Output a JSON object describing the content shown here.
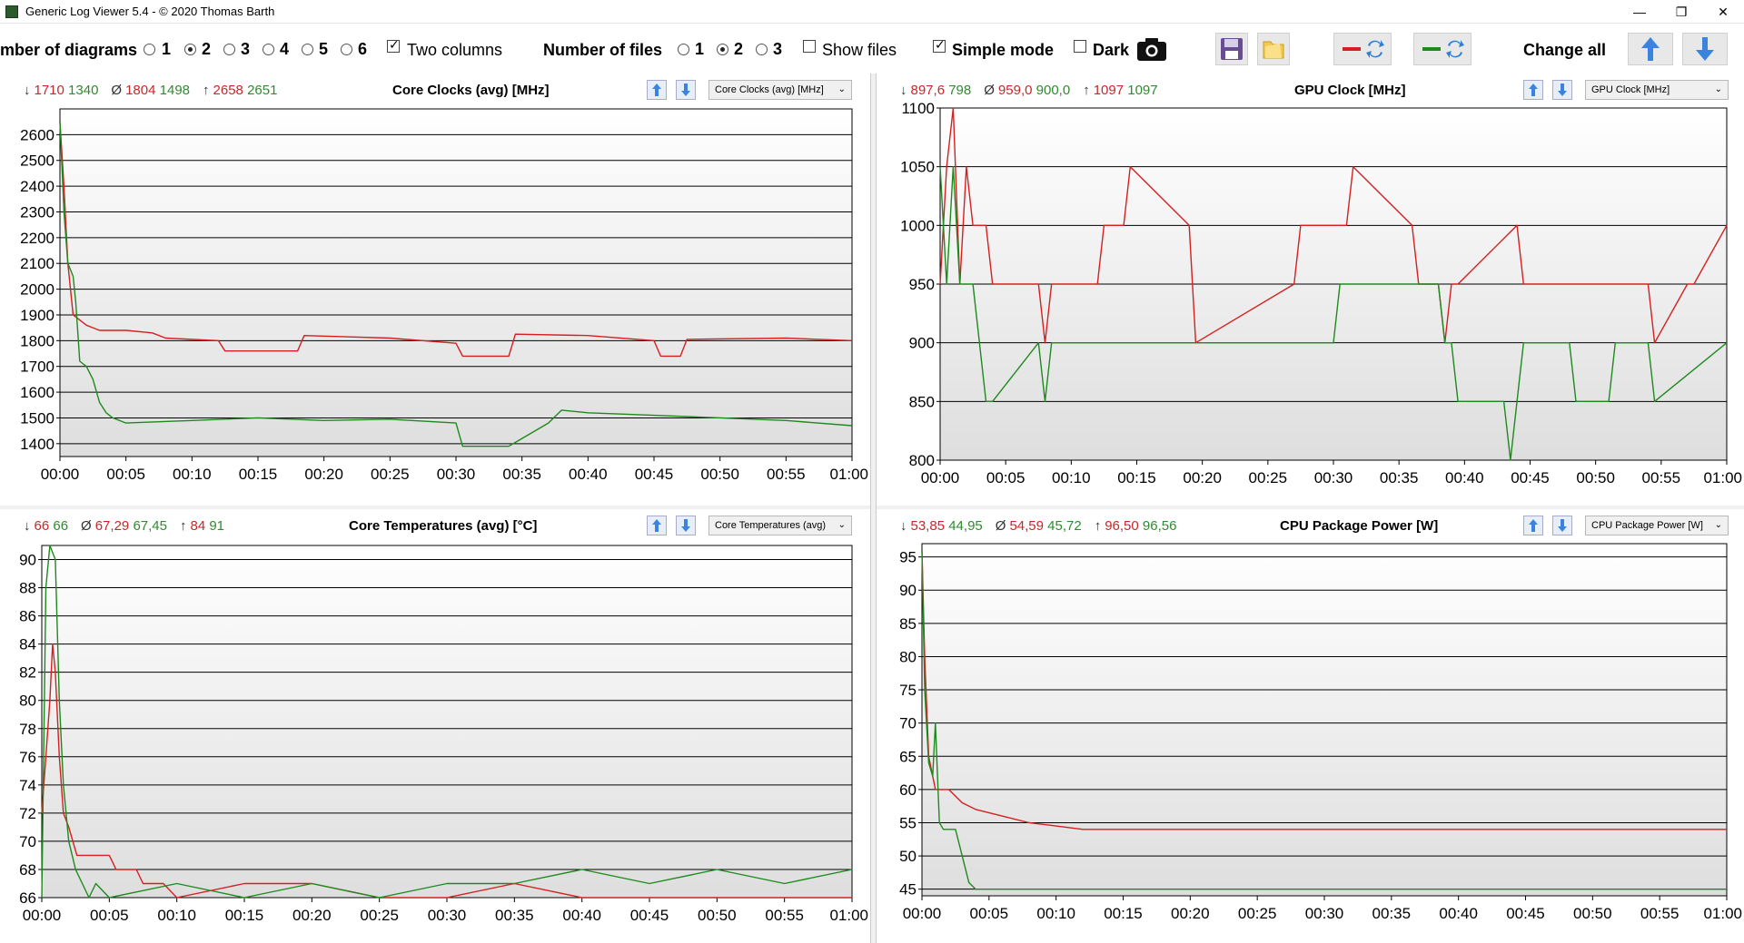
{
  "window": {
    "title": "Generic Log Viewer 5.4 - © 2020 Thomas Barth",
    "buttons": [
      "—",
      "❐",
      "✕"
    ]
  },
  "toolbar": {
    "num_diagrams_label": "mber of diagrams",
    "diagram_options": [
      "1",
      "2",
      "3",
      "4",
      "5",
      "6"
    ],
    "diagram_selected": "2",
    "two_columns_label": "Two columns",
    "two_columns_checked": true,
    "num_files_label": "Number of files",
    "file_options": [
      "1",
      "2",
      "3"
    ],
    "file_selected": "2",
    "show_files_label": "Show files",
    "show_files_checked": false,
    "simple_mode_label": "Simple mode",
    "simple_mode_checked": true,
    "dark_label": "Dark",
    "dark_checked": false,
    "change_all_label": "Change all"
  },
  "colors": {
    "red": "#d42020",
    "green": "#1e8a1e",
    "grid": "#000000"
  },
  "panels": [
    {
      "id": "core-clocks",
      "title": "Core Clocks (avg) [MHz]",
      "combo": "Core Clocks (avg) [MHz]",
      "stats": {
        "min": [
          "1710",
          "1340"
        ],
        "avg": [
          "1804",
          "1498"
        ],
        "max": [
          "2658",
          "2651"
        ]
      },
      "chart_data": {
        "type": "line",
        "ylim": [
          1350,
          2700
        ],
        "yticks": [
          1400,
          1500,
          1600,
          1700,
          1800,
          1900,
          2000,
          2100,
          2200,
          2300,
          2400,
          2500,
          2600
        ],
        "xticks": [
          "00:00",
          "00:05",
          "00:10",
          "00:15",
          "00:20",
          "00:25",
          "00:30",
          "00:35",
          "00:40",
          "00:45",
          "00:50",
          "00:55",
          "01:00"
        ],
        "series": [
          {
            "color": "red",
            "x": [
              0,
              0.3,
              0.6,
              1,
              1.5,
              2,
              2.5,
              3,
              5,
              7,
              8,
              12,
              12.5,
              18,
              18.5,
              25,
              30,
              30.5,
              34,
              34.5,
              40,
              45,
              45.5,
              47,
              47.5,
              55,
              60
            ],
            "y": [
              2650,
              2400,
              2100,
              1900,
              1880,
              1860,
              1850,
              1840,
              1840,
              1830,
              1810,
              1800,
              1760,
              1760,
              1820,
              1810,
              1790,
              1740,
              1740,
              1825,
              1820,
              1800,
              1740,
              1740,
              1805,
              1810,
              1800
            ]
          },
          {
            "color": "green",
            "x": [
              0,
              0.3,
              0.6,
              1,
              1.2,
              1.5,
              2,
              2.5,
              3,
              3.5,
              4,
              5,
              10,
              15,
              20,
              25,
              30,
              30.5,
              34,
              35,
              37,
              38,
              40,
              45,
              50,
              55,
              60
            ],
            "y": [
              2650,
              2300,
              2100,
              2050,
              1950,
              1720,
              1700,
              1650,
              1560,
              1520,
              1500,
              1480,
              1490,
              1500,
              1490,
              1495,
              1480,
              1390,
              1390,
              1420,
              1480,
              1530,
              1520,
              1510,
              1500,
              1490,
              1470
            ]
          }
        ]
      }
    },
    {
      "id": "gpu-clock",
      "title": "GPU Clock [MHz]",
      "combo": "GPU Clock [MHz]",
      "stats": {
        "min": [
          "897,6",
          "798"
        ],
        "avg": [
          "959,0",
          "900,0"
        ],
        "max": [
          "1097",
          "1097"
        ]
      },
      "chart_data": {
        "type": "line",
        "ylim": [
          800,
          1100
        ],
        "yticks": [
          800,
          850,
          900,
          950,
          1000,
          1050,
          1100
        ],
        "xticks": [
          "00:00",
          "00:05",
          "00:10",
          "00:15",
          "00:20",
          "00:25",
          "00:30",
          "00:35",
          "00:40",
          "00:45",
          "00:50",
          "00:55",
          "01:00"
        ],
        "series": [
          {
            "color": "red",
            "x": [
              0,
              0.5,
              1,
              1.5,
              2,
              2.5,
              3,
              3.5,
              4,
              7.5,
              8,
              8.5,
              12,
              12.5,
              14,
              14.5,
              19,
              19.5,
              27,
              27.5,
              31,
              31.5,
              36,
              36.5,
              38,
              38.5,
              39,
              39.5,
              44,
              44.5,
              47,
              47.5,
              54,
              54.5,
              57,
              57.5,
              60
            ],
            "y": [
              950,
              1050,
              1100,
              950,
              1050,
              1000,
              1000,
              1000,
              950,
              950,
              900,
              950,
              950,
              1000,
              1000,
              1050,
              1000,
              900,
              950,
              1000,
              1000,
              1050,
              1000,
              950,
              950,
              900,
              950,
              950,
              1000,
              950,
              950,
              950,
              950,
              900,
              950,
              950,
              1000
            ]
          },
          {
            "color": "green",
            "x": [
              0,
              0.5,
              1,
              1.5,
              2,
              2.5,
              3,
              3.5,
              4,
              7.5,
              8,
              8.5,
              15,
              20,
              30,
              30.5,
              38,
              38.5,
              39,
              39.5,
              43,
              43.5,
              44,
              44.5,
              48,
              48.5,
              51,
              51.5,
              54,
              54.5,
              60
            ],
            "y": [
              1050,
              950,
              1050,
              950,
              950,
              950,
              900,
              850,
              850,
              900,
              850,
              900,
              900,
              900,
              900,
              950,
              950,
              900,
              900,
              850,
              850,
              800,
              850,
              900,
              900,
              850,
              850,
              900,
              900,
              850,
              900
            ]
          }
        ]
      }
    },
    {
      "id": "core-temps",
      "title": "Core Temperatures (avg) [°C]",
      "combo": "Core Temperatures (avg)",
      "stats": {
        "min": [
          "66",
          "66"
        ],
        "avg": [
          "67,29",
          "67,45"
        ],
        "max": [
          "84",
          "91"
        ]
      },
      "chart_data": {
        "type": "line",
        "ylim": [
          66,
          91
        ],
        "yticks": [
          66,
          68,
          70,
          72,
          74,
          76,
          78,
          80,
          82,
          84,
          86,
          88,
          90
        ],
        "xticks": [
          "00:00",
          "00:05",
          "00:10",
          "00:15",
          "00:20",
          "00:25",
          "00:30",
          "00:35",
          "00:40",
          "00:45",
          "00:50",
          "00:55",
          "01:00"
        ],
        "series": [
          {
            "color": "red",
            "x": [
              0,
              0.3,
              0.6,
              0.8,
              1,
              1.3,
              1.6,
              2,
              2.3,
              2.6,
              3,
              5,
              5.5,
              7,
              7.5,
              9,
              10,
              15,
              20,
              25,
              30,
              35,
              40,
              45,
              50,
              55,
              60
            ],
            "y": [
              72,
              76,
              80,
              84,
              82,
              76,
              72,
              71,
              70,
              69,
              69,
              69,
              68,
              68,
              67,
              67,
              66,
              67,
              67,
              66,
              66,
              67,
              66,
              66,
              66,
              66,
              66
            ]
          },
          {
            "color": "green",
            "x": [
              0,
              0.3,
              0.6,
              1,
              1.3,
              1.6,
              2,
              2.5,
              3,
              3.5,
              4,
              5,
              10,
              15,
              20,
              25,
              30,
              35,
              40,
              45,
              50,
              55,
              60
            ],
            "y": [
              66,
              88,
              91,
              90,
              80,
              74,
              70,
              68,
              67,
              66,
              67,
              66,
              67,
              66,
              67,
              66,
              67,
              67,
              68,
              67,
              68,
              67,
              68
            ]
          }
        ]
      }
    },
    {
      "id": "cpu-power",
      "title": "CPU Package Power [W]",
      "combo": "CPU Package Power [W]",
      "stats": {
        "min": [
          "53,85",
          "44,95"
        ],
        "avg": [
          "54,59",
          "45,72"
        ],
        "max": [
          "96,50",
          "96,56"
        ]
      },
      "chart_data": {
        "type": "line",
        "ylim": [
          44,
          97
        ],
        "yticks": [
          45,
          50,
          55,
          60,
          65,
          70,
          75,
          80,
          85,
          90,
          95
        ],
        "xticks": [
          "00:00",
          "00:05",
          "00:10",
          "00:15",
          "00:20",
          "00:25",
          "00:30",
          "00:35",
          "00:40",
          "00:45",
          "00:50",
          "00:55",
          "01:00"
        ],
        "series": [
          {
            "color": "red",
            "x": [
              0,
              0.2,
              0.5,
              0.8,
              1,
              1.3,
              2,
              3,
              4,
              6,
              8,
              10,
              12,
              15,
              20,
              30,
              40,
              50,
              60
            ],
            "y": [
              96,
              80,
              65,
              62,
              60,
              60,
              60,
              58,
              57,
              56,
              55,
              54.5,
              54,
              54,
              54,
              54,
              54,
              54,
              54
            ]
          },
          {
            "color": "green",
            "x": [
              0,
              0.2,
              0.5,
              0.8,
              1,
              1.3,
              1.6,
              2,
              2.5,
              3,
              3.5,
              4,
              5,
              10,
              20,
              30,
              40,
              50,
              60
            ],
            "y": [
              96,
              75,
              64,
              62,
              70,
              55,
              54,
              54,
              54,
              50,
              46,
              45,
              45,
              45,
              45,
              45,
              45,
              45,
              45
            ]
          }
        ]
      }
    }
  ]
}
